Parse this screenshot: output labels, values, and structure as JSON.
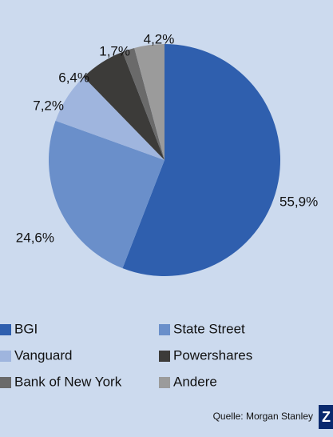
{
  "chart_data": {
    "type": "pie",
    "categories": [
      "BGI",
      "State Street",
      "Vanguard",
      "Powershares",
      "Bank of New York",
      "Andere"
    ],
    "values": [
      55.9,
      24.6,
      7.2,
      6.4,
      1.7,
      4.2
    ],
    "value_labels": [
      "55,9%",
      "24,6%",
      "7,2%",
      "6,4%",
      "1,7%",
      "4,2%"
    ],
    "colors": [
      "#2f5fae",
      "#6a8fca",
      "#9fb5de",
      "#3c3b39",
      "#6a6a6a",
      "#9b9b9b"
    ],
    "source": "Quelle: Morgan Stanley",
    "logo": "Z"
  }
}
